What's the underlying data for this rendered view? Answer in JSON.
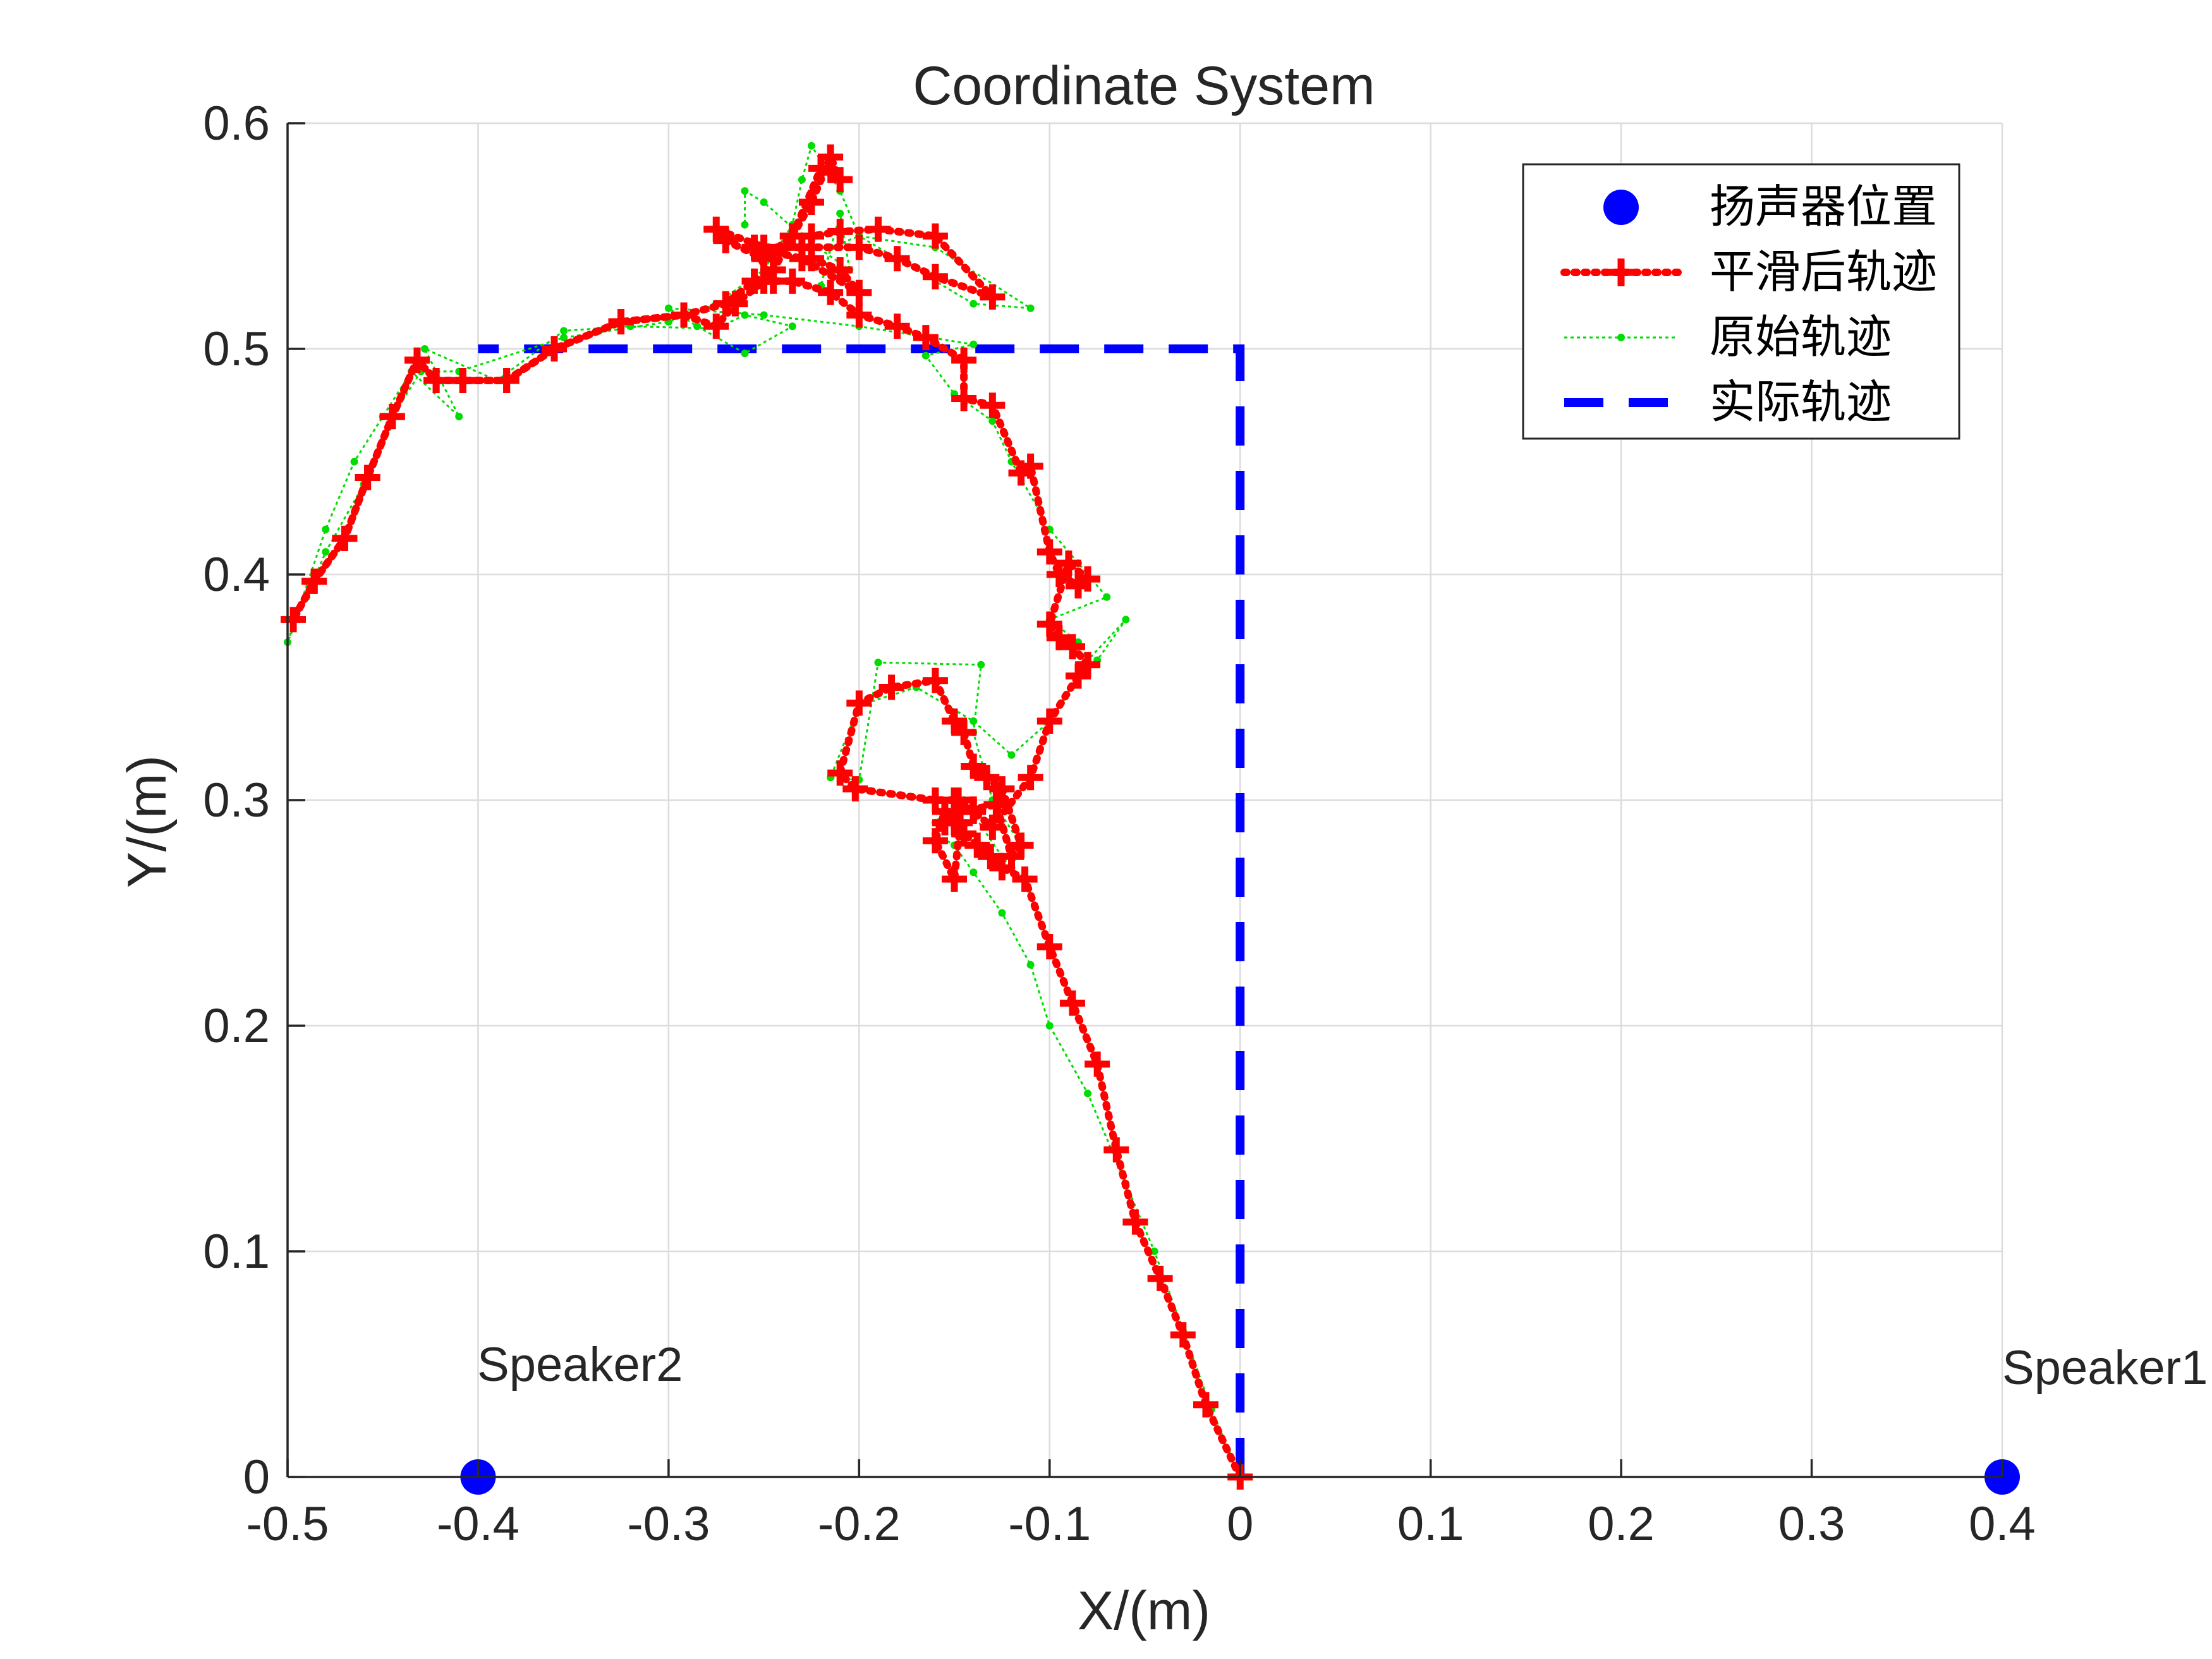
{
  "chart_data": {
    "type": "line",
    "title": "Coordinate System",
    "xlabel": "X/(m)",
    "ylabel": "Y/(m)",
    "xlim": [
      -0.5,
      0.4
    ],
    "ylim": [
      0,
      0.6
    ],
    "xticks": [
      -0.5,
      -0.4,
      -0.3,
      -0.2,
      -0.1,
      0,
      0.1,
      0.2,
      0.3,
      0.4
    ],
    "yticks": [
      0,
      0.1,
      0.2,
      0.3,
      0.4,
      0.5,
      0.6
    ],
    "xtick_labels": [
      "-0.5",
      "-0.4",
      "-0.3",
      "-0.2",
      "-0.1",
      "0",
      "0.1",
      "0.2",
      "0.3",
      "0.4"
    ],
    "ytick_labels": [
      "0",
      "0.1",
      "0.2",
      "0.3",
      "0.4",
      "0.5",
      "0.6"
    ],
    "grid": true,
    "legend_position": "top-right",
    "colors": {
      "speaker": "#0000ff",
      "smoothed": "#ff0000",
      "raw": "#00dd00",
      "actual": "#0000ff",
      "grid": "#dcdcdc",
      "axis": "#262626"
    },
    "legend": [
      {
        "name": "扬声器位置",
        "series": "speakers"
      },
      {
        "name": "平滑后轨迹",
        "series": "smoothed"
      },
      {
        "name": "原始轨迹",
        "series": "raw"
      },
      {
        "name": "实际轨迹",
        "series": "actual"
      }
    ],
    "annotations": [
      {
        "text": "Speaker2",
        "x": -0.4,
        "y": 0.045
      },
      {
        "text": "Speaker1",
        "x": 0.4,
        "y": 0.045
      }
    ],
    "series": {
      "speakers": {
        "name": "扬声器位置",
        "x": [
          -0.4,
          0.4
        ],
        "y": [
          0,
          0
        ]
      },
      "actual": {
        "name": "实际轨迹",
        "x": [
          0,
          0,
          -0.4
        ],
        "y": [
          0,
          0.5,
          0.5
        ]
      },
      "smoothed": {
        "name": "平滑后轨迹",
        "x": [
          0,
          -0.018,
          -0.03,
          -0.042,
          -0.055,
          -0.065,
          -0.075,
          -0.088,
          -0.1,
          -0.113,
          -0.125,
          -0.131,
          -0.138,
          -0.145,
          -0.15,
          -0.155,
          -0.16,
          -0.15,
          -0.147,
          -0.155,
          -0.15,
          -0.148,
          -0.14,
          -0.128,
          -0.12,
          -0.115,
          -0.125,
          -0.133,
          -0.14,
          -0.145,
          -0.15,
          -0.16,
          -0.183,
          -0.2,
          -0.21,
          -0.202,
          -0.16,
          -0.15,
          -0.14,
          -0.13,
          -0.11,
          -0.1,
          -0.085,
          -0.08,
          -0.088,
          -0.095,
          -0.1,
          -0.09,
          -0.08,
          -0.085,
          -0.095,
          -0.1,
          -0.11,
          -0.115,
          -0.13,
          -0.145,
          -0.145,
          -0.165,
          -0.18,
          -0.2,
          -0.215,
          -0.235,
          -0.25,
          -0.265,
          -0.275,
          -0.292,
          -0.325,
          -0.36,
          -0.385,
          -0.408,
          -0.422,
          -0.432,
          -0.445,
          -0.458,
          -0.47,
          -0.486,
          -0.497,
          -0.486,
          -0.47,
          -0.458,
          -0.445,
          -0.432,
          -0.422,
          -0.408,
          -0.385,
          -0.36,
          -0.325,
          -0.292,
          -0.27,
          -0.255,
          -0.245,
          -0.235,
          -0.225,
          -0.215,
          -0.21,
          -0.22,
          -0.235,
          -0.25,
          -0.27,
          -0.275,
          -0.25,
          -0.23,
          -0.2,
          -0.18,
          -0.16,
          -0.13,
          -0.16,
          -0.19,
          -0.21,
          -0.225,
          -0.225,
          -0.21,
          -0.2,
          -0.23,
          -0.255,
          -0.245
        ],
        "y": [
          0,
          0.032,
          0.063,
          0.088,
          0.113,
          0.145,
          0.183,
          0.21,
          0.235,
          0.265,
          0.27,
          0.275,
          0.28,
          0.285,
          0.29,
          0.295,
          0.282,
          0.265,
          0.29,
          0.29,
          0.295,
          0.3,
          0.296,
          0.298,
          0.275,
          0.28,
          0.305,
          0.31,
          0.315,
          0.33,
          0.335,
          0.353,
          0.35,
          0.343,
          0.312,
          0.305,
          0.3,
          0.3,
          0.295,
          0.288,
          0.31,
          0.335,
          0.355,
          0.36,
          0.368,
          0.372,
          0.378,
          0.405,
          0.398,
          0.395,
          0.4,
          0.41,
          0.448,
          0.445,
          0.475,
          0.478,
          0.495,
          0.505,
          0.51,
          0.515,
          0.525,
          0.53,
          0.53,
          0.52,
          0.51,
          0.515,
          0.512,
          0.5,
          0.486,
          0.486,
          0.486,
          0.495,
          0.47,
          0.443,
          0.416,
          0.397,
          0.38,
          0.397,
          0.416,
          0.443,
          0.47,
          0.495,
          0.486,
          0.486,
          0.486,
          0.5,
          0.512,
          0.515,
          0.52,
          0.53,
          0.535,
          0.55,
          0.565,
          0.585,
          0.575,
          0.58,
          0.55,
          0.54,
          0.548,
          0.553,
          0.545,
          0.545,
          0.545,
          0.54,
          0.532,
          0.523,
          0.55,
          0.553,
          0.552,
          0.55,
          0.54,
          0.535,
          0.525,
          0.54,
          0.545,
          0.53
        ]
      },
      "raw": {
        "name": "原始轨迹",
        "x": [
          0,
          -0.015,
          -0.03,
          -0.045,
          -0.06,
          -0.08,
          -0.1,
          -0.11,
          -0.125,
          -0.14,
          -0.15,
          -0.16,
          -0.155,
          -0.16,
          -0.145,
          -0.125,
          -0.12,
          -0.115,
          -0.13,
          -0.14,
          -0.136,
          -0.19,
          -0.2,
          -0.215,
          -0.2,
          -0.17,
          -0.14,
          -0.12,
          -0.1,
          -0.08,
          -0.075,
          -0.06,
          -0.08,
          -0.085,
          -0.1,
          -0.07,
          -0.085,
          -0.1,
          -0.12,
          -0.13,
          -0.15,
          -0.165,
          -0.14,
          -0.2,
          -0.25,
          -0.3,
          -0.285,
          -0.26,
          -0.235,
          -0.26,
          -0.275,
          -0.32,
          -0.355,
          -0.39,
          -0.428,
          -0.41,
          -0.435,
          -0.45,
          -0.465,
          -0.48,
          -0.5,
          -0.49,
          -0.48,
          -0.46,
          -0.445,
          -0.43,
          -0.41,
          -0.355,
          -0.3,
          -0.275,
          -0.25,
          -0.235,
          -0.23,
          -0.225,
          -0.21,
          -0.2,
          -0.18,
          -0.14,
          -0.11,
          -0.16,
          -0.2,
          -0.215,
          -0.22,
          -0.21,
          -0.205,
          -0.23,
          -0.25,
          -0.26,
          -0.26
        ],
        "y": [
          0,
          0.03,
          0.065,
          0.1,
          0.13,
          0.17,
          0.2,
          0.227,
          0.25,
          0.268,
          0.28,
          0.285,
          0.295,
          0.29,
          0.3,
          0.275,
          0.27,
          0.28,
          0.3,
          0.33,
          0.36,
          0.361,
          0.309,
          0.31,
          0.342,
          0.35,
          0.335,
          0.32,
          0.335,
          0.36,
          0.362,
          0.38,
          0.362,
          0.37,
          0.38,
          0.39,
          0.405,
          0.42,
          0.45,
          0.468,
          0.48,
          0.497,
          0.502,
          0.51,
          0.515,
          0.518,
          0.51,
          0.498,
          0.51,
          0.515,
          0.509,
          0.51,
          0.508,
          0.486,
          0.5,
          0.47,
          0.49,
          0.47,
          0.45,
          0.42,
          0.37,
          0.39,
          0.41,
          0.44,
          0.47,
          0.49,
          0.49,
          0.505,
          0.512,
          0.52,
          0.535,
          0.555,
          0.575,
          0.59,
          0.57,
          0.55,
          0.54,
          0.52,
          0.518,
          0.545,
          0.55,
          0.545,
          0.528,
          0.56,
          0.535,
          0.55,
          0.565,
          0.57,
          0.555
        ]
      }
    }
  }
}
